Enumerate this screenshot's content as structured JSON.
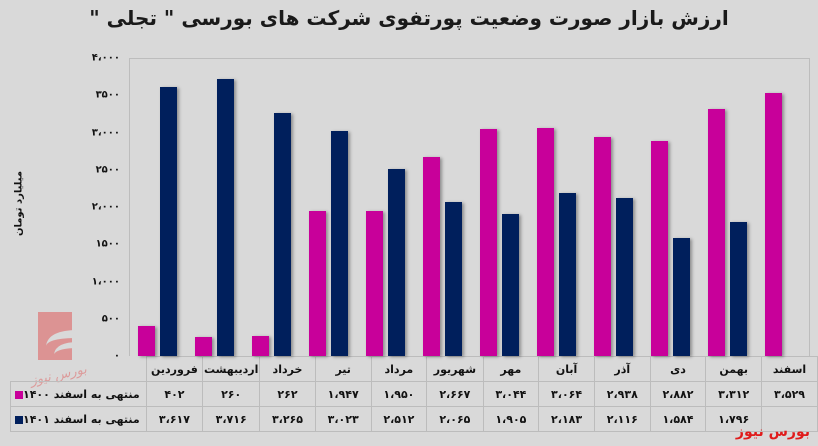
{
  "chart_data": {
    "type": "bar",
    "title": "ارزش بازار صورت وضعیت پورتفوی شرکت های بورسی \" تجلی \"",
    "xlabel": "",
    "ylabel": "میلیارد تومان",
    "ylim": [
      0,
      4000
    ],
    "yticks": [
      "۰",
      "۵۰۰",
      "۱،۰۰۰",
      "۱۵۰۰",
      "۲،۰۰۰",
      "۲۵۰۰",
      "۳،۰۰۰",
      "۳۵۰۰",
      "۴،۰۰۰"
    ],
    "ytick_values": [
      0,
      500,
      1000,
      1500,
      2000,
      2500,
      3000,
      3500,
      4000
    ],
    "grid": false,
    "legend_position": "data-table-left",
    "categories": [
      "فروردین",
      "اردیبهشت",
      "خرداد",
      "تیر",
      "مرداد",
      "شهریور",
      "مهر",
      "آبان",
      "آذر",
      "دی",
      "بهمن",
      "اسفند"
    ],
    "series": [
      {
        "name": "منتهی به اسفند ۱۴۰۰",
        "color": "#c8009a",
        "values": [
          402,
          260,
          262,
          1947,
          1950,
          2667,
          3044,
          3064,
          2938,
          2882,
          3312,
          3529
        ],
        "labels": [
          "۴۰۲",
          "۲۶۰",
          "۲۶۲",
          "۱،۹۴۷",
          "۱،۹۵۰",
          "۲،۶۶۷",
          "۳،۰۴۴",
          "۳،۰۶۴",
          "۲،۹۳۸",
          "۲،۸۸۲",
          "۳،۳۱۲",
          "۳،۵۲۹"
        ]
      },
      {
        "name": "منتهی به اسفند ۱۴۰۱",
        "color": "#001f5c",
        "values": [
          3617,
          3716,
          3265,
          3023,
          2512,
          2065,
          1905,
          2183,
          2116,
          1584,
          1796,
          null
        ],
        "labels": [
          "۳،۶۱۷",
          "۳،۷۱۶",
          "۳،۲۶۵",
          "۳،۰۲۳",
          "۲،۵۱۲",
          "۲،۰۶۵",
          "۱،۹۰۵",
          "۲،۱۸۳",
          "۲،۱۱۶",
          "۱،۵۸۴",
          "۱،۷۹۶",
          ""
        ]
      }
    ]
  },
  "brand": "بورس نیوز",
  "watermark": "بورس نیوز"
}
